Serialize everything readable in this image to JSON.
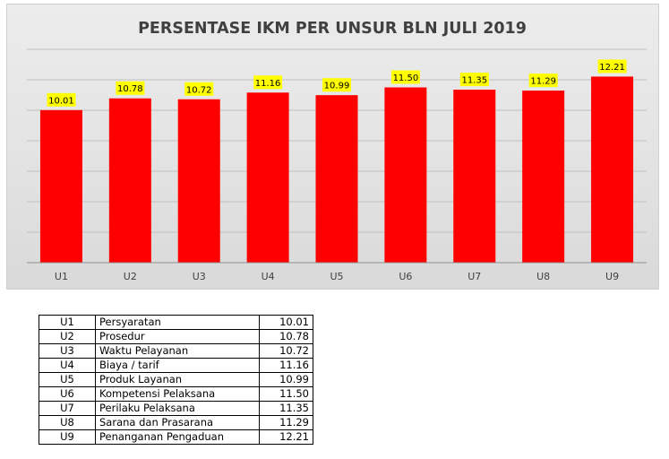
{
  "chart_data": {
    "type": "bar",
    "title": "PERSENTASE IKM PER UNSUR BLN JULI 2019",
    "categories": [
      "U1",
      "U2",
      "U3",
      "U4",
      "U5",
      "U6",
      "U7",
      "U8",
      "U9"
    ],
    "values": [
      10.01,
      10.78,
      10.72,
      11.16,
      10.99,
      11.5,
      11.35,
      11.29,
      12.21
    ],
    "value_labels": [
      "10.01",
      "10.78",
      "10.72",
      "11.16",
      "10.99",
      "11.50",
      "11.35",
      "11.29",
      "12.21"
    ],
    "ylim": [
      0,
      14
    ],
    "grid": true,
    "y_tick_labels_shown": false,
    "bar_color": "#ff0000",
    "label_background": "#ffff00"
  },
  "table": {
    "rows": [
      {
        "code": "U1",
        "name": "Persyaratan",
        "value": "10.01"
      },
      {
        "code": "U2",
        "name": "Prosedur",
        "value": "10.78"
      },
      {
        "code": "U3",
        "name": "Waktu Pelayanan",
        "value": "10.72"
      },
      {
        "code": "U4",
        "name": "Biaya / tarif",
        "value": "11.16"
      },
      {
        "code": "U5",
        "name": "Produk Layanan",
        "value": "10.99"
      },
      {
        "code": "U6",
        "name": "Kompetensi Pelaksana",
        "value": "11.50"
      },
      {
        "code": "U7",
        "name": "Perilaku Pelaksana",
        "value": "11.35"
      },
      {
        "code": "U8",
        "name": "Sarana dan Prasarana",
        "value": "11.29"
      },
      {
        "code": "U9",
        "name": "Penanganan Pengaduan",
        "value": "12.21"
      }
    ]
  }
}
